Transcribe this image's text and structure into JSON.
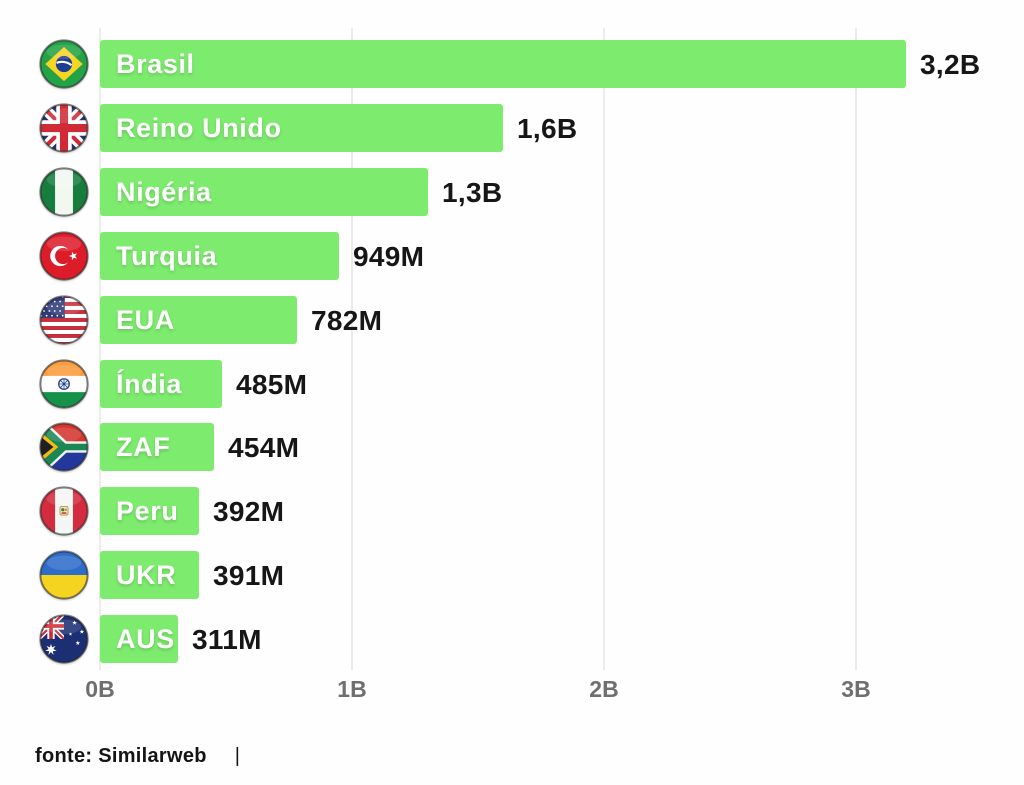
{
  "chart_data": {
    "type": "bar",
    "orientation": "horizontal",
    "title": "",
    "categories": [
      "Brasil",
      "Reino Unido",
      "Nigéria",
      "Turquia",
      "EUA",
      "Índia",
      "ZAF",
      "Peru",
      "UKR",
      "AUS"
    ],
    "values_billions": [
      3.2,
      1.6,
      1.3,
      0.949,
      0.782,
      0.485,
      0.454,
      0.392,
      0.391,
      0.311
    ],
    "value_labels": [
      "3,2B",
      "1,6B",
      "1,3B",
      "949M",
      "782M",
      "485M",
      "454M",
      "392M",
      "391M",
      "311M"
    ],
    "x_tick_labels": [
      "0B",
      "1B",
      "2B",
      "3B"
    ],
    "x_tick_values_billions": [
      0,
      1,
      2,
      3
    ],
    "xlim_billions": [
      0,
      3.65
    ],
    "grid": true,
    "legend": false,
    "source": "fonte: Similarweb"
  },
  "rows": [
    {
      "country": "Brasil",
      "flag_icon": "brazil-flag-icon",
      "value_billions": 3.2,
      "value_label": "3,2B"
    },
    {
      "country": "Reino Unido",
      "flag_icon": "uk-flag-icon",
      "value_billions": 1.6,
      "value_label": "1,6B"
    },
    {
      "country": "Nigéria",
      "flag_icon": "nigeria-flag-icon",
      "value_billions": 1.3,
      "value_label": "1,3B"
    },
    {
      "country": "Turquia",
      "flag_icon": "turkey-flag-icon",
      "value_billions": 0.949,
      "value_label": "949M"
    },
    {
      "country": "EUA",
      "flag_icon": "usa-flag-icon",
      "value_billions": 0.782,
      "value_label": "782M"
    },
    {
      "country": "Índia",
      "flag_icon": "india-flag-icon",
      "value_billions": 0.485,
      "value_label": "485M"
    },
    {
      "country": "ZAF",
      "flag_icon": "south-africa-flag-icon",
      "value_billions": 0.454,
      "value_label": "454M"
    },
    {
      "country": "Peru",
      "flag_icon": "peru-flag-icon",
      "value_billions": 0.392,
      "value_label": "392M"
    },
    {
      "country": "UKR",
      "flag_icon": "ukraine-flag-icon",
      "value_billions": 0.391,
      "value_label": "391M"
    },
    {
      "country": "AUS",
      "flag_icon": "australia-flag-icon",
      "value_billions": 0.311,
      "value_label": "311M"
    }
  ],
  "axis": {
    "ticks": [
      "0B",
      "1B",
      "2B",
      "3B"
    ]
  },
  "footer": {
    "source_label": "fonte: Similarweb",
    "cursor": "|"
  },
  "colors": {
    "bar": "#7dec6e",
    "bar_label_text": "#ffffff",
    "value_text": "#161616",
    "axis_text": "#6f6f6f",
    "grid": "#ebebeb",
    "background": "#fefefe"
  }
}
